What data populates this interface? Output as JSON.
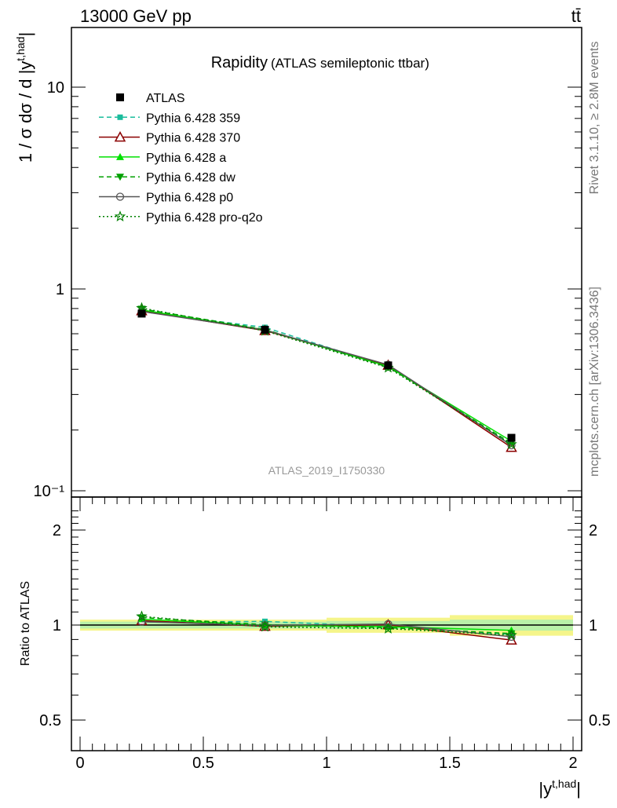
{
  "header": {
    "energy_label": "13000 GeV pp",
    "process_label": "tt̄"
  },
  "side_labels": {
    "rivet": "Rivet 3.1.10, ≥ 2.8M events",
    "mcplots": "mcplots.cern.ch [arXiv:1306.3436]"
  },
  "chart_data": [
    {
      "type": "line",
      "title": "Rapidity",
      "subtitle": "(ATLAS semileptonic ttbar)",
      "watermark": "ATLAS_2019_I1750330",
      "ylabel": "1 / σ dσ / d |y^{t,had}|",
      "yscale": "log",
      "ylim": [
        0.1,
        20
      ],
      "xlim": [
        -0.05,
        2.05
      ],
      "ytick_labels": [
        "10⁻¹",
        "1",
        "10"
      ],
      "legend_position": "top-left",
      "x": [
        0.25,
        0.75,
        1.25,
        1.75
      ],
      "data": {
        "name": "ATLAS",
        "values": [
          0.755,
          0.628,
          0.418,
          0.183
        ],
        "yerr": [
          0.012,
          0.01,
          0.008,
          0.005
        ]
      },
      "series": [
        {
          "name": "Pythia 6.428 359",
          "color": "#1abc9c",
          "dash": "dashed",
          "marker": "square",
          "values": [
            0.772,
            0.645,
            0.413,
            0.171
          ]
        },
        {
          "name": "Pythia 6.428 370",
          "color": "#8b0000",
          "dash": "solid",
          "marker": "open-triangle",
          "values": [
            0.78,
            0.622,
            0.419,
            0.164
          ]
        },
        {
          "name": "Pythia 6.428 a",
          "color": "#00e000",
          "dash": "solid",
          "marker": "triangle",
          "values": [
            0.788,
            0.627,
            0.413,
            0.176
          ]
        },
        {
          "name": "Pythia 6.428 dw",
          "color": "#00a000",
          "dash": "dashed",
          "marker": "down-triangle",
          "values": [
            0.797,
            0.63,
            0.41,
            0.172
          ]
        },
        {
          "name": "Pythia 6.428 p0",
          "color": "#555555",
          "dash": "solid",
          "marker": "open-circle",
          "values": [
            0.774,
            0.626,
            0.421,
            0.168
          ]
        },
        {
          "name": "Pythia 6.428 pro-q2o",
          "color": "#008000",
          "dash": "dotted",
          "marker": "star",
          "values": [
            0.804,
            0.62,
            0.407,
            0.17
          ]
        }
      ]
    },
    {
      "type": "line",
      "title": "",
      "ylabel": "Ratio to ATLAS",
      "xlabel": "|y^{t,had}|",
      "ylim": [
        0.4,
        2.4
      ],
      "xlim": [
        -0.05,
        2.05
      ],
      "x": [
        0.25,
        0.75,
        1.25,
        1.75
      ],
      "ytick_labels": [
        "0.5",
        "1",
        "2"
      ],
      "xtick_labels": [
        "0",
        "0.5",
        "1",
        "1.5",
        "2"
      ],
      "data_band": {
        "bins": [
          [
            0,
            0.5
          ],
          [
            0.5,
            1
          ],
          [
            1,
            1.5
          ],
          [
            1.5,
            2
          ]
        ],
        "stat_rel": [
          0.025,
          0.025,
          0.03,
          0.04
        ],
        "total_rel": [
          0.04,
          0.04,
          0.055,
          0.075
        ]
      },
      "series": [
        {
          "name": "Pythia 6.428 359",
          "values": [
            1.022,
            1.027,
            0.988,
            0.934
          ]
        },
        {
          "name": "Pythia 6.428 370",
          "values": [
            1.033,
            0.991,
            1.002,
            0.896
          ]
        },
        {
          "name": "Pythia 6.428 a",
          "values": [
            1.044,
            0.998,
            0.988,
            0.962
          ]
        },
        {
          "name": "Pythia 6.428 dw",
          "values": [
            1.056,
            1.003,
            0.981,
            0.94
          ]
        },
        {
          "name": "Pythia 6.428 p0",
          "values": [
            1.025,
            0.997,
            1.007,
            0.918
          ]
        },
        {
          "name": "Pythia 6.428 pro-q2o",
          "values": [
            1.065,
            0.987,
            0.974,
            0.929
          ]
        }
      ]
    }
  ]
}
